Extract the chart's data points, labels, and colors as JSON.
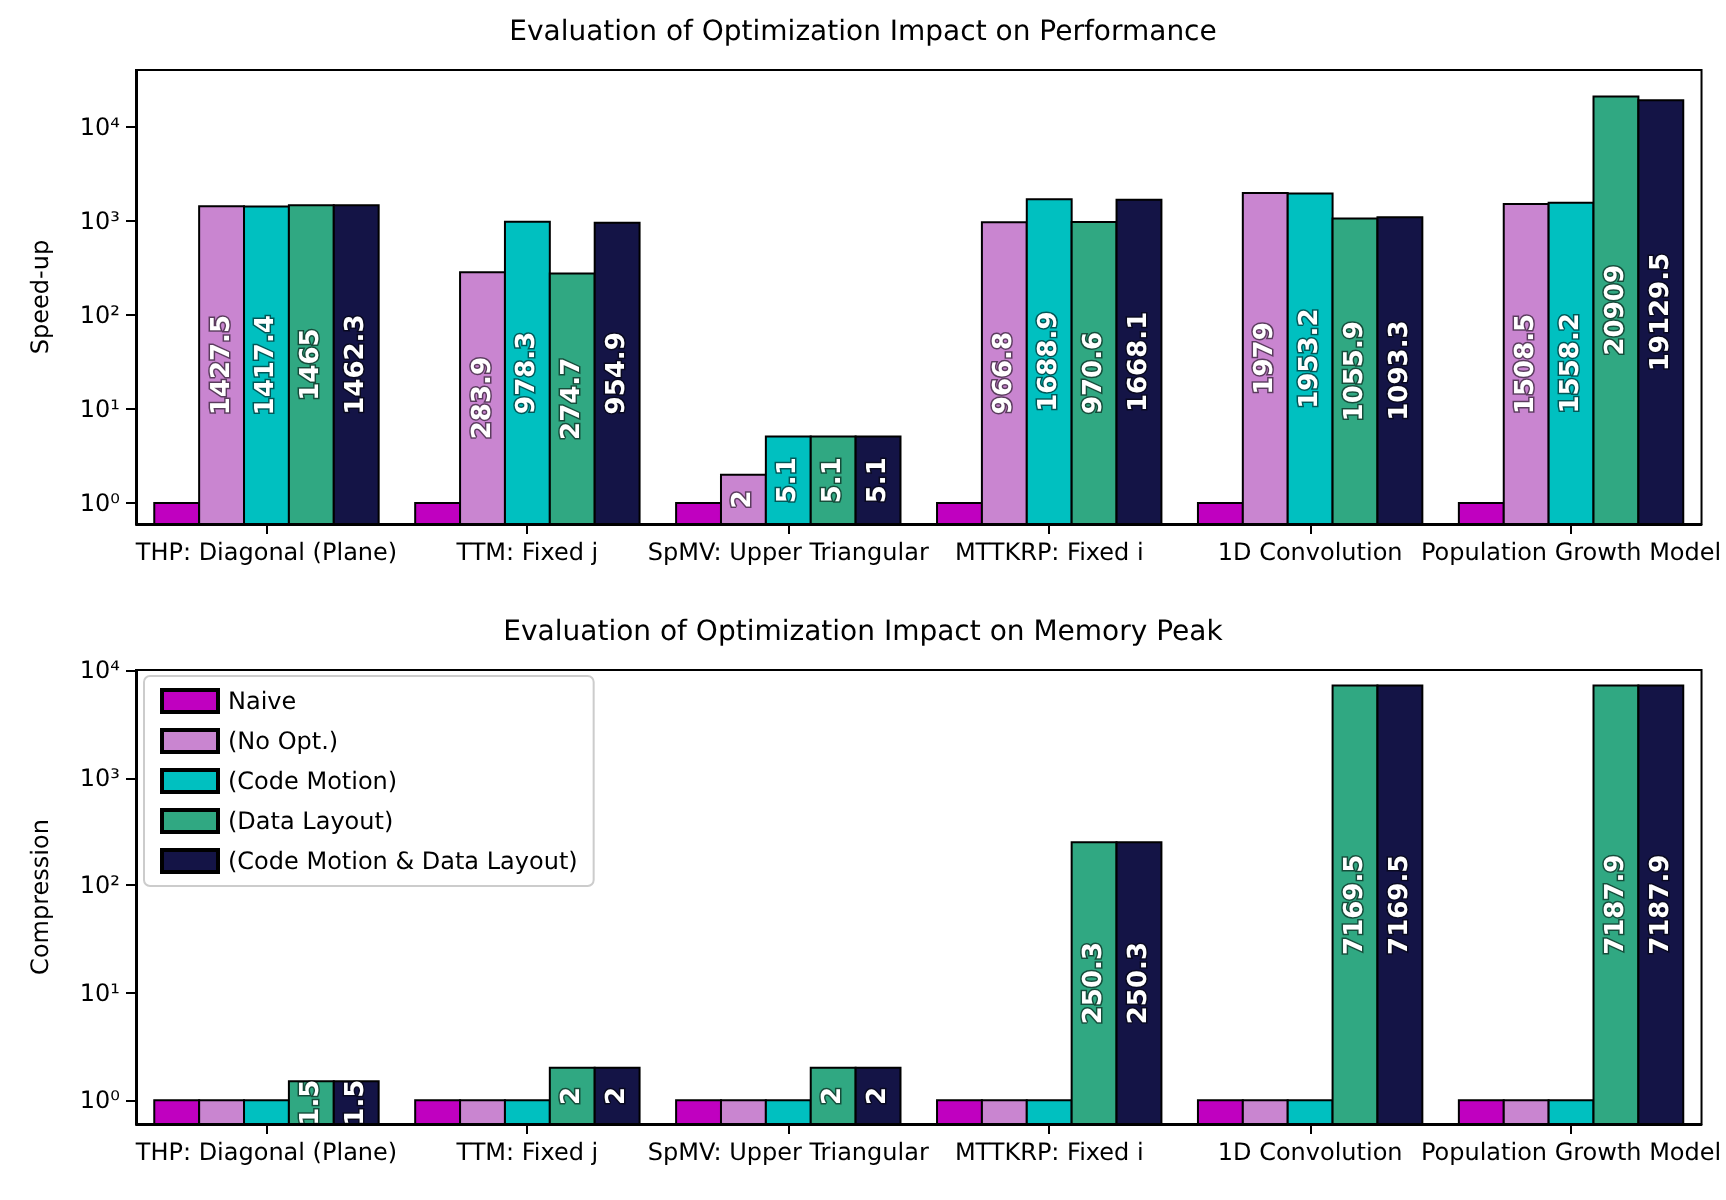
{
  "chart_data": [
    {
      "type": "bar",
      "title": "Evaluation of Optimization Impact on Performance",
      "ylabel": "Speed-up",
      "categories": [
        "THP: Diagonal (Plane)",
        "TTM: Fixed j",
        "SpMV: Upper Triangular",
        "MTTKRP: Fixed i",
        "1D Convolution",
        "Population Growth Model"
      ],
      "series": [
        {
          "color": "#c000c0",
          "values": [
            1,
            1,
            1,
            1,
            1,
            1
          ],
          "value_labels": [
            null,
            null,
            null,
            null,
            null,
            null
          ]
        },
        {
          "color": "#c985d0",
          "values": [
            1427.5,
            283.9,
            2,
            966.8,
            1979,
            1508.5
          ],
          "value_labels": [
            "1427.5",
            "283.9",
            "2",
            "966.8",
            "1979",
            "1508.5"
          ]
        },
        {
          "color": "#00c0c0",
          "values": [
            1417.4,
            978.3,
            5.1,
            1688.9,
            1953.2,
            1558.2
          ],
          "value_labels": [
            "1417.4",
            "978.3",
            "5.1",
            "1688.9",
            "1953.2",
            "1558.2"
          ]
        },
        {
          "color": "#30a882",
          "values": [
            1465,
            274.7,
            5.1,
            970.6,
            1055.9,
            20909
          ],
          "value_labels": [
            "1465",
            "274.7",
            "5.1",
            "970.6",
            "1055.9",
            "20909"
          ]
        },
        {
          "color": "#141446",
          "values": [
            1462.3,
            954.9,
            5.1,
            1668.1,
            1093.3,
            19129.5
          ],
          "value_labels": [
            "1462.3",
            "954.9",
            "5.1",
            "1668.1",
            "1093.3",
            "19129.5"
          ]
        }
      ],
      "log": "y",
      "ylim": [
        0.6,
        40000
      ],
      "yticks": [
        {
          "value": 1,
          "label": "10⁰"
        },
        {
          "value": 10,
          "label": "10¹"
        },
        {
          "value": 100,
          "label": "10²"
        },
        {
          "value": 1000,
          "label": "10³"
        },
        {
          "value": 10000,
          "label": "10⁴"
        }
      ],
      "grid": false,
      "legend": false
    },
    {
      "type": "bar",
      "title": "Evaluation of Optimization Impact on Memory Peak",
      "ylabel": "Compression",
      "categories": [
        "THP: Diagonal (Plane)",
        "TTM: Fixed j",
        "SpMV: Upper Triangular",
        "MTTKRP: Fixed i",
        "1D Convolution",
        "Population Growth Model"
      ],
      "series": [
        {
          "name": "Naive",
          "color": "#c000c0",
          "values": [
            1,
            1,
            1,
            1,
            1,
            1
          ],
          "value_labels": [
            null,
            null,
            null,
            null,
            null,
            null
          ]
        },
        {
          "name": "(No Opt.)",
          "color": "#c985d0",
          "values": [
            1,
            1,
            1,
            1,
            1,
            1
          ],
          "value_labels": [
            null,
            null,
            null,
            null,
            null,
            null
          ]
        },
        {
          "name": "(Code Motion)",
          "color": "#00c0c0",
          "values": [
            1,
            1,
            1,
            1,
            1,
            1
          ],
          "value_labels": [
            null,
            null,
            null,
            null,
            null,
            null
          ]
        },
        {
          "name": "(Data Layout)",
          "color": "#30a882",
          "values": [
            1.5,
            2,
            2,
            250.3,
            7169.5,
            7187.9
          ],
          "value_labels": [
            "1.5",
            "2",
            "2",
            "250.3",
            "7169.5",
            "7187.9"
          ]
        },
        {
          "name": "(Code Motion & Data Layout)",
          "color": "#141446",
          "values": [
            1.5,
            2,
            2,
            250.3,
            7169.5,
            7187.9
          ],
          "value_labels": [
            "1.5",
            "2",
            "2",
            "250.3",
            "7169.5",
            "7187.9"
          ]
        }
      ],
      "log": "y",
      "ylim": [
        0.6,
        10000
      ],
      "yticks": [
        {
          "value": 1,
          "label": "10⁰"
        },
        {
          "value": 10,
          "label": "10¹"
        },
        {
          "value": 100,
          "label": "10²"
        },
        {
          "value": 1000,
          "label": "10³"
        },
        {
          "value": 10000,
          "label": "10⁴"
        }
      ],
      "grid": false,
      "legend": "top left"
    }
  ]
}
